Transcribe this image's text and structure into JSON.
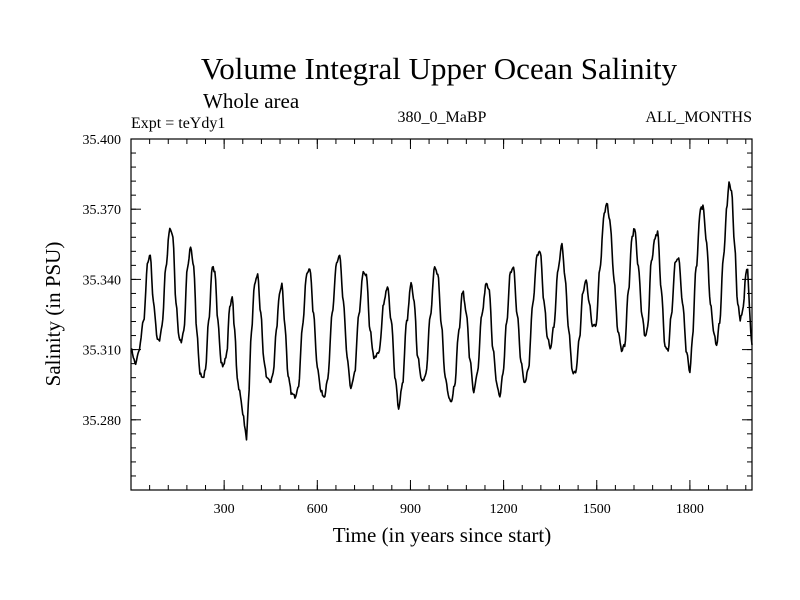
{
  "chart_data": {
    "type": "line",
    "title": "Volume Integral Upper Ocean Salinity",
    "subtitle": "Whole area",
    "experiment_label": "Expt = teYdy1",
    "period_label": "380_0_MaBP",
    "months_label": "ALL_MONTHS",
    "xlabel": "Time (in years since start)",
    "ylabel": "Salinity (in PSU)",
    "xlim": [
      0,
      2000
    ],
    "ylim": [
      35.25,
      35.4
    ],
    "x_ticks": [
      300,
      600,
      900,
      1200,
      1500,
      1800
    ],
    "x_tick_labels": [
      "300",
      "600",
      "900",
      "1200",
      "1500",
      "1800"
    ],
    "y_ticks": [
      35.28,
      35.31,
      35.34,
      35.37,
      35.4
    ],
    "y_tick_labels": [
      "35.280",
      "35.310",
      "35.340",
      "35.370",
      "35.400"
    ],
    "x_minor_step": 60,
    "y_minor_step": 0.006,
    "grid": false,
    "series": [
      {
        "name": "salinity",
        "color": "#000000",
        "points": [
          [
            0,
            35.31
          ],
          [
            15,
            35.304
          ],
          [
            25,
            35.309
          ],
          [
            40,
            35.322
          ],
          [
            55,
            35.348
          ],
          [
            62,
            35.35
          ],
          [
            72,
            35.33
          ],
          [
            85,
            35.315
          ],
          [
            92,
            35.314
          ],
          [
            100,
            35.32
          ],
          [
            112,
            35.345
          ],
          [
            125,
            35.362
          ],
          [
            135,
            35.358
          ],
          [
            145,
            35.33
          ],
          [
            155,
            35.315
          ],
          [
            162,
            35.313
          ],
          [
            170,
            35.318
          ],
          [
            182,
            35.345
          ],
          [
            192,
            35.354
          ],
          [
            202,
            35.345
          ],
          [
            212,
            35.318
          ],
          [
            222,
            35.3
          ],
          [
            232,
            35.298
          ],
          [
            240,
            35.301
          ],
          [
            250,
            35.322
          ],
          [
            262,
            35.346
          ],
          [
            270,
            35.343
          ],
          [
            280,
            35.322
          ],
          [
            290,
            35.305
          ],
          [
            298,
            35.303
          ],
          [
            308,
            35.308
          ],
          [
            318,
            35.328
          ],
          [
            326,
            35.333
          ],
          [
            334,
            35.318
          ],
          [
            342,
            35.298
          ],
          [
            350,
            35.292
          ],
          [
            360,
            35.283
          ],
          [
            368,
            35.275
          ],
          [
            372,
            35.271
          ],
          [
            378,
            35.288
          ],
          [
            388,
            35.318
          ],
          [
            398,
            35.338
          ],
          [
            408,
            35.342
          ],
          [
            418,
            35.325
          ],
          [
            428,
            35.305
          ],
          [
            438,
            35.298
          ],
          [
            448,
            35.296
          ],
          [
            458,
            35.3
          ],
          [
            468,
            35.318
          ],
          [
            478,
            35.334
          ],
          [
            486,
            35.338
          ],
          [
            496,
            35.32
          ],
          [
            506,
            35.298
          ],
          [
            518,
            35.291
          ],
          [
            528,
            35.29
          ],
          [
            540,
            35.295
          ],
          [
            552,
            35.32
          ],
          [
            566,
            35.342
          ],
          [
            576,
            35.345
          ],
          [
            588,
            35.325
          ],
          [
            600,
            35.303
          ],
          [
            612,
            35.292
          ],
          [
            622,
            35.29
          ],
          [
            634,
            35.298
          ],
          [
            648,
            35.325
          ],
          [
            662,
            35.347
          ],
          [
            672,
            35.35
          ],
          [
            684,
            35.33
          ],
          [
            696,
            35.307
          ],
          [
            708,
            35.293
          ],
          [
            720,
            35.3
          ],
          [
            734,
            35.325
          ],
          [
            748,
            35.343
          ],
          [
            758,
            35.342
          ],
          [
            770,
            35.318
          ],
          [
            782,
            35.307
          ],
          [
            794,
            35.308
          ],
          [
            800,
            35.31
          ],
          [
            814,
            35.33
          ],
          [
            826,
            35.337
          ],
          [
            838,
            35.322
          ],
          [
            852,
            35.297
          ],
          [
            862,
            35.285
          ],
          [
            874,
            35.295
          ],
          [
            888,
            35.322
          ],
          [
            902,
            35.338
          ],
          [
            912,
            35.33
          ],
          [
            924,
            35.306
          ],
          [
            938,
            35.296
          ],
          [
            950,
            35.3
          ],
          [
            964,
            35.325
          ],
          [
            978,
            35.345
          ],
          [
            988,
            35.342
          ],
          [
            1000,
            35.32
          ],
          [
            1012,
            35.298
          ],
          [
            1024,
            35.29
          ],
          [
            1032,
            35.288
          ],
          [
            1042,
            35.295
          ],
          [
            1056,
            35.318
          ],
          [
            1068,
            35.335
          ],
          [
            1080,
            35.326
          ],
          [
            1092,
            35.305
          ],
          [
            1104,
            35.292
          ],
          [
            1116,
            35.3
          ],
          [
            1130,
            35.325
          ],
          [
            1144,
            35.338
          ],
          [
            1154,
            35.335
          ],
          [
            1166,
            35.31
          ],
          [
            1178,
            35.295
          ],
          [
            1188,
            35.29
          ],
          [
            1198,
            35.3
          ],
          [
            1210,
            35.322
          ],
          [
            1222,
            35.343
          ],
          [
            1232,
            35.345
          ],
          [
            1244,
            35.325
          ],
          [
            1256,
            35.305
          ],
          [
            1268,
            35.296
          ],
          [
            1280,
            35.302
          ],
          [
            1294,
            35.33
          ],
          [
            1308,
            35.35
          ],
          [
            1318,
            35.352
          ],
          [
            1330,
            35.33
          ],
          [
            1342,
            35.315
          ],
          [
            1350,
            35.31
          ],
          [
            1362,
            35.32
          ],
          [
            1376,
            35.345
          ],
          [
            1388,
            35.355
          ],
          [
            1398,
            35.34
          ],
          [
            1410,
            35.318
          ],
          [
            1422,
            35.3
          ],
          [
            1432,
            35.3
          ],
          [
            1444,
            35.315
          ],
          [
            1456,
            35.335
          ],
          [
            1466,
            35.34
          ],
          [
            1476,
            35.33
          ],
          [
            1486,
            35.32
          ],
          [
            1498,
            35.32
          ],
          [
            1510,
            35.345
          ],
          [
            1524,
            35.368
          ],
          [
            1532,
            35.373
          ],
          [
            1542,
            35.365
          ],
          [
            1556,
            35.34
          ],
          [
            1568,
            35.318
          ],
          [
            1580,
            35.31
          ],
          [
            1590,
            35.312
          ],
          [
            1602,
            35.335
          ],
          [
            1614,
            35.358
          ],
          [
            1622,
            35.362
          ],
          [
            1634,
            35.345
          ],
          [
            1646,
            35.325
          ],
          [
            1656,
            35.315
          ],
          [
            1664,
            35.32
          ],
          [
            1676,
            35.348
          ],
          [
            1688,
            35.358
          ],
          [
            1696,
            35.36
          ],
          [
            1708,
            35.335
          ],
          [
            1720,
            35.312
          ],
          [
            1730,
            35.31
          ],
          [
            1740,
            35.325
          ],
          [
            1754,
            35.348
          ],
          [
            1764,
            35.349
          ],
          [
            1776,
            35.33
          ],
          [
            1790,
            35.308
          ],
          [
            1800,
            35.3
          ],
          [
            1808,
            35.315
          ],
          [
            1820,
            35.345
          ],
          [
            1834,
            35.37
          ],
          [
            1842,
            35.371
          ],
          [
            1854,
            35.355
          ],
          [
            1866,
            35.33
          ],
          [
            1878,
            35.317
          ],
          [
            1886,
            35.312
          ],
          [
            1896,
            35.322
          ],
          [
            1908,
            35.35
          ],
          [
            1920,
            35.372
          ],
          [
            1926,
            35.381
          ],
          [
            1934,
            35.378
          ],
          [
            1944,
            35.355
          ],
          [
            1954,
            35.33
          ],
          [
            1962,
            35.323
          ],
          [
            1972,
            35.328
          ],
          [
            1980,
            35.342
          ],
          [
            1986,
            35.345
          ],
          [
            1992,
            35.328
          ],
          [
            1996,
            35.318
          ],
          [
            2000,
            35.312
          ]
        ]
      }
    ]
  }
}
